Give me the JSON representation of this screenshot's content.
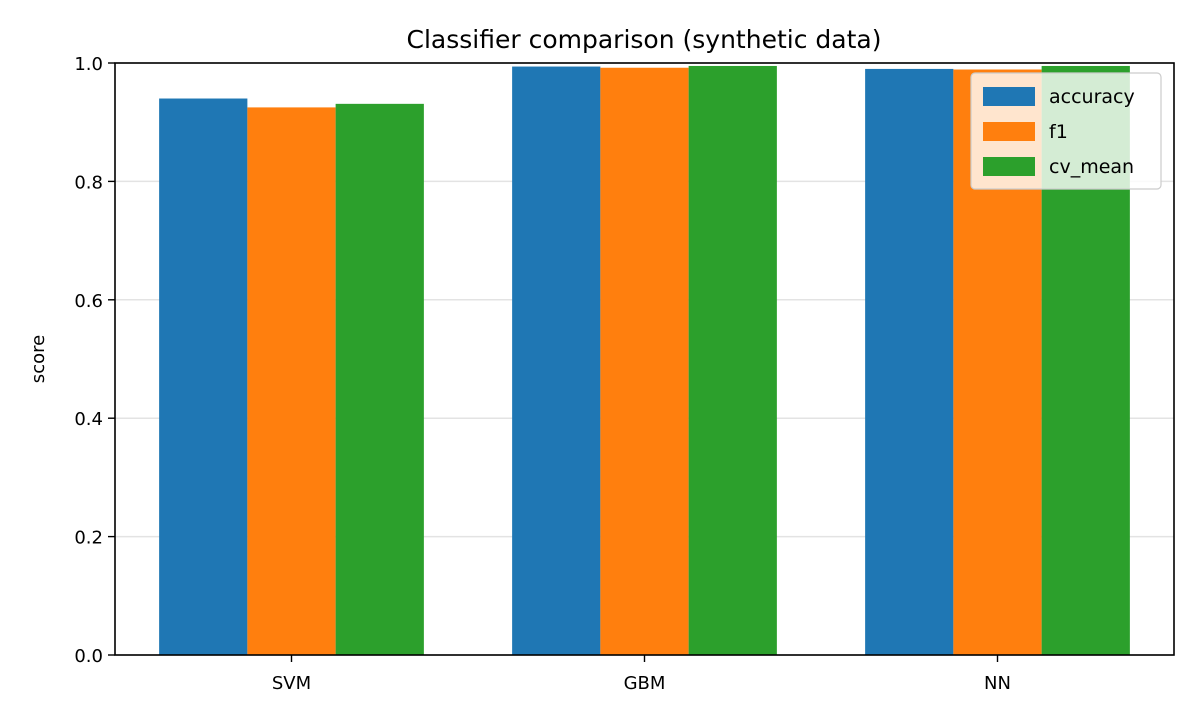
{
  "chart_data": {
    "type": "bar",
    "title": "Classifier comparison (synthetic data)",
    "xlabel": "",
    "ylabel": "score",
    "ylim": [
      0,
      1.0
    ],
    "yticks": [
      0.0,
      0.2,
      0.4,
      0.6,
      0.8,
      1.0
    ],
    "ytick_labels": [
      "0.0",
      "0.2",
      "0.4",
      "0.6",
      "0.8",
      "1.0"
    ],
    "grid": true,
    "legend_position": "top-right",
    "categories": [
      "SVM",
      "GBM",
      "NN"
    ],
    "series": [
      {
        "name": "accuracy",
        "color": "#1f77b4",
        "values": [
          0.94,
          0.994,
          0.99
        ]
      },
      {
        "name": "f1",
        "color": "#ff7f0e",
        "values": [
          0.925,
          0.992,
          0.989
        ]
      },
      {
        "name": "cv_mean",
        "color": "#2ca02c",
        "values": [
          0.931,
          0.995,
          0.995
        ]
      }
    ]
  }
}
